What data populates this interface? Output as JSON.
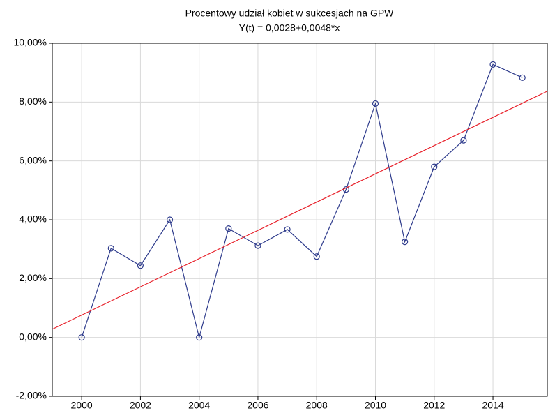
{
  "chart_data": {
    "type": "line",
    "title": "Procentowy udział kobiet w sukcesjach na GPW",
    "subtitle": "Y(t) = 0,0028+0,0048*x",
    "xlim": [
      1999,
      2015.85
    ],
    "xticks": [
      2000,
      2002,
      2004,
      2006,
      2008,
      2010,
      2012,
      2014
    ],
    "ylim": [
      -2,
      10
    ],
    "yticks": [
      {
        "value": -2,
        "label": "-2,00%"
      },
      {
        "value": 0,
        "label": "0,00%"
      },
      {
        "value": 2,
        "label": "2,00%"
      },
      {
        "value": 4,
        "label": "4,00%"
      },
      {
        "value": 6,
        "label": "6,00%"
      },
      {
        "value": 8,
        "label": "8,00%"
      },
      {
        "value": 10,
        "label": "10,00%"
      }
    ],
    "grid": true,
    "series": [
      {
        "color": "#2e3b8c",
        "markers": true,
        "x": [
          2000,
          2001,
          2002,
          2003,
          2004,
          2005,
          2006,
          2007,
          2008,
          2009,
          2010,
          2011,
          2012,
          2013,
          2014,
          2015
        ],
        "values": [
          0,
          3.03,
          2.44,
          4.0,
          0,
          3.7,
          3.12,
          3.67,
          2.75,
          5.03,
          7.95,
          3.25,
          5.8,
          6.7,
          9.28,
          8.83
        ]
      },
      {
        "color": "#e8212b",
        "markers": false,
        "x": [
          1999,
          2015.85
        ],
        "values": [
          0.28,
          8.37
        ]
      }
    ]
  }
}
